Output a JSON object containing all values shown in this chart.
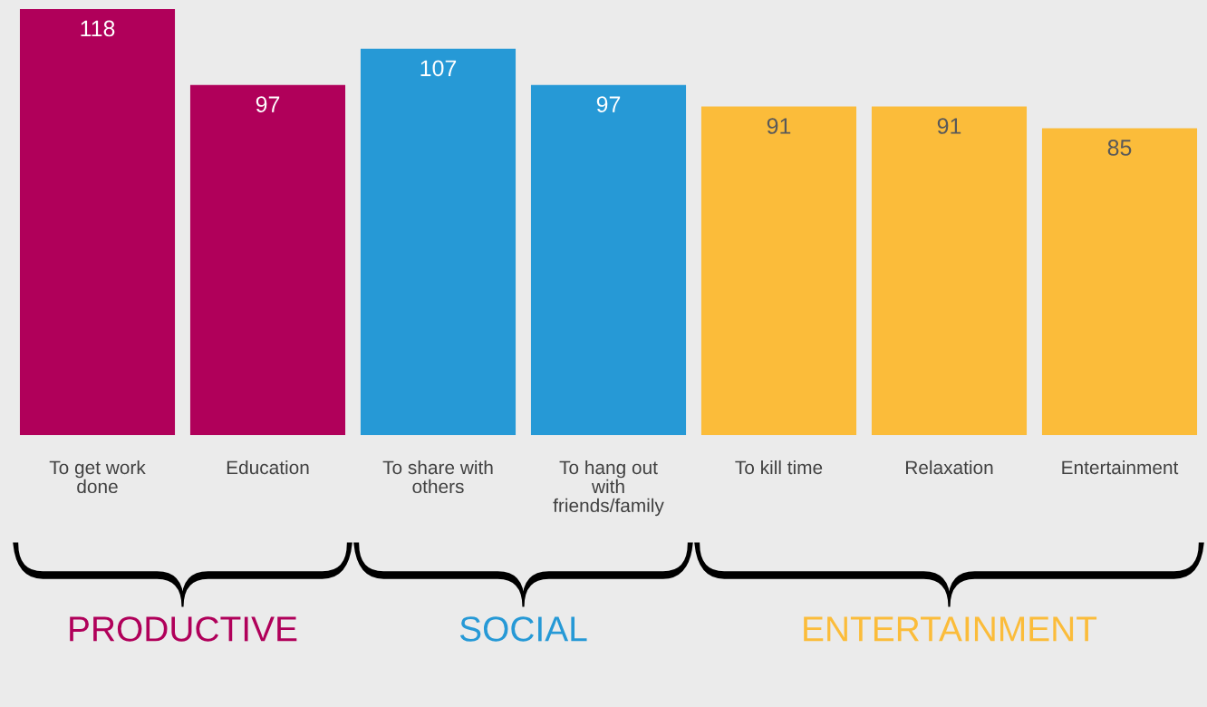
{
  "chart_data": {
    "type": "bar",
    "categories": [
      "To get work done",
      "Education",
      "To share with others",
      "To hang out with friends/family",
      "To kill time",
      "Relaxation",
      "Entertainment"
    ],
    "values": [
      118,
      97,
      107,
      97,
      91,
      91,
      85
    ],
    "colors": [
      "#b0005a",
      "#b0005a",
      "#2699d6",
      "#2699d6",
      "#fbbc3a",
      "#fbbc3a",
      "#fbbc3a"
    ],
    "data_labels": true,
    "annotations": [
      "PRODUCTIVE",
      "SOCIAL",
      "ENTERTAINMENT"
    ]
  }
}
